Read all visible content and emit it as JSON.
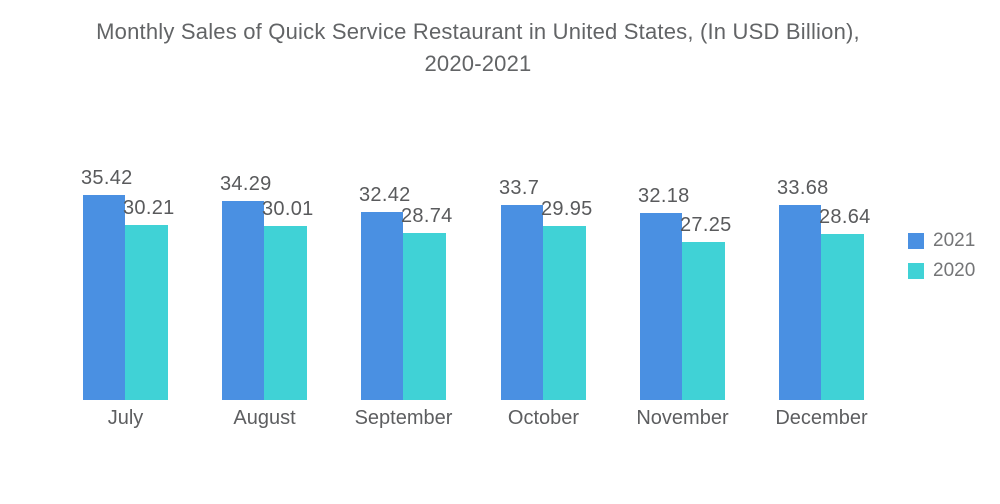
{
  "header": {
    "title_line1": "Monthly Sales of Quick Service Restaurant in United States, (In USD Billion),",
    "title_line2": "2020-2021"
  },
  "colors": {
    "series_2021": "#4A90E2",
    "series_2020": "#40D2D6",
    "title_text": "#626466",
    "label_text": "#595a5c",
    "background": "#ffffff"
  },
  "legend": {
    "items": [
      {
        "label": "2021",
        "color": "#4A90E2"
      },
      {
        "label": "2020",
        "color": "#40D2D6"
      }
    ],
    "position": "right"
  },
  "chart_data": {
    "type": "bar",
    "title": "Monthly Sales of Quick Service Restaurant in United States, (In USD Billion), 2020-2021",
    "categories": [
      "July",
      "August",
      "September",
      "October",
      "November",
      "December"
    ],
    "series": [
      {
        "name": "2021",
        "color": "#4A90E2",
        "values": [
          35.42,
          34.29,
          32.42,
          33.7,
          32.18,
          33.68
        ]
      },
      {
        "name": "2020",
        "color": "#40D2D6",
        "values": [
          30.21,
          30.01,
          28.74,
          29.95,
          27.25,
          28.64
        ]
      }
    ],
    "xlabel": "",
    "ylabel": "",
    "ylim": [
      0,
      40
    ],
    "grid": false,
    "axes_visible": false,
    "value_labels": true,
    "legend_position": "right"
  }
}
